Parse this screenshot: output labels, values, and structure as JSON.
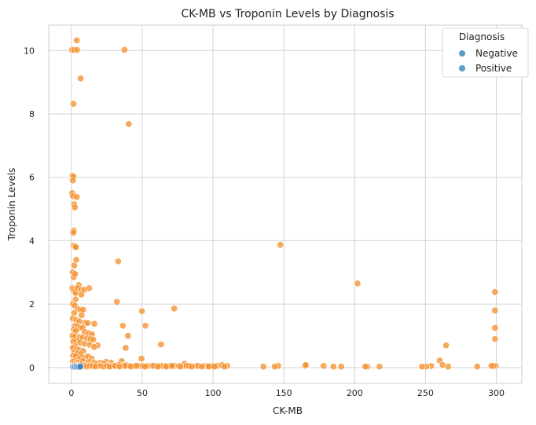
{
  "chart_data": {
    "type": "scatter",
    "title": "CK-MB vs Troponin Levels by Diagnosis",
    "xlabel": "CK-MB",
    "ylabel": "Troponin Levels",
    "xlim": [
      -16,
      318
    ],
    "ylim": [
      -0.5,
      10.8
    ],
    "xticks": [
      0,
      50,
      100,
      150,
      200,
      250,
      300
    ],
    "yticks": [
      0,
      2,
      4,
      6,
      8,
      10
    ],
    "grid": true,
    "legend": {
      "title": "Diagnosis",
      "placement": "top-right",
      "entries": [
        {
          "label": "Negative",
          "color": "#5b9bc9"
        },
        {
          "label": "Positive",
          "color": "#5b9bc9"
        }
      ]
    },
    "series": [
      {
        "name": "Negative",
        "color": "#3a7fc0",
        "points": [
          [
            1.2,
            0.02
          ],
          [
            2.0,
            0.03
          ],
          [
            2.8,
            0.02
          ],
          [
            3.6,
            0.03
          ],
          [
            4.5,
            0.02
          ],
          [
            5.5,
            0.02
          ],
          [
            6.3,
            0.03
          ]
        ]
      },
      {
        "name": "Positive",
        "color": "#f5922f",
        "points": [
          [
            0.5,
            10.02
          ],
          [
            1.8,
            10.02
          ],
          [
            4.0,
            10.02
          ],
          [
            3.8,
            10.32
          ],
          [
            37.5,
            10.02
          ],
          [
            6.5,
            9.12
          ],
          [
            1.5,
            8.32
          ],
          [
            40.5,
            7.68
          ],
          [
            0.8,
            6.05
          ],
          [
            1.4,
            6.02
          ],
          [
            1.0,
            5.9
          ],
          [
            0.6,
            5.5
          ],
          [
            1.2,
            5.4
          ],
          [
            3.8,
            5.38
          ],
          [
            2.0,
            5.15
          ],
          [
            2.4,
            5.05
          ],
          [
            1.7,
            4.32
          ],
          [
            1.4,
            4.25
          ],
          [
            1.6,
            3.85
          ],
          [
            2.4,
            3.82
          ],
          [
            3.2,
            3.8
          ],
          [
            3.4,
            3.4
          ],
          [
            2.0,
            3.22
          ],
          [
            0.9,
            3.0
          ],
          [
            1.6,
            2.85
          ],
          [
            2.6,
            2.95
          ],
          [
            0.6,
            2.5
          ],
          [
            1.4,
            2.45
          ],
          [
            2.2,
            2.4
          ],
          [
            3.1,
            2.35
          ],
          [
            5.2,
            2.6
          ],
          [
            4.4,
            2.5
          ],
          [
            6.9,
            2.45
          ],
          [
            9.1,
            2.45
          ],
          [
            12.6,
            2.5
          ],
          [
            7.0,
            2.3
          ],
          [
            3.0,
            2.15
          ],
          [
            1.1,
            2.0
          ],
          [
            2.5,
            1.95
          ],
          [
            4.6,
            1.85
          ],
          [
            6.4,
            1.82
          ],
          [
            8.3,
            1.82
          ],
          [
            2.0,
            1.72
          ],
          [
            7.2,
            1.65
          ],
          [
            1.0,
            1.55
          ],
          [
            3.4,
            1.5
          ],
          [
            5.6,
            1.45
          ],
          [
            9.7,
            1.42
          ],
          [
            11.5,
            1.4
          ],
          [
            16.2,
            1.38
          ],
          [
            2.5,
            1.32
          ],
          [
            4.2,
            1.3
          ],
          [
            6.3,
            1.25
          ],
          [
            8.1,
            1.25
          ],
          [
            1.8,
            1.2
          ],
          [
            3.2,
            1.15
          ],
          [
            9.4,
            1.12
          ],
          [
            12.1,
            1.08
          ],
          [
            14.5,
            1.05
          ],
          [
            0.8,
            1.0
          ],
          [
            2.7,
            0.98
          ],
          [
            5.8,
            0.96
          ],
          [
            7.9,
            0.95
          ],
          [
            11.0,
            0.92
          ],
          [
            13.4,
            0.9
          ],
          [
            15.4,
            0.88
          ],
          [
            4.2,
            0.85
          ],
          [
            1.4,
            0.82
          ],
          [
            6.3,
            0.78
          ],
          [
            9.3,
            0.75
          ],
          [
            12.8,
            0.72
          ],
          [
            2.6,
            0.68
          ],
          [
            0.9,
            0.62
          ],
          [
            3.7,
            0.58
          ],
          [
            5.6,
            0.55
          ],
          [
            8.3,
            0.52
          ],
          [
            18.5,
            0.7
          ],
          [
            16.0,
            0.65
          ],
          [
            2.1,
            0.48
          ],
          [
            4.3,
            0.45
          ],
          [
            6.6,
            0.42
          ],
          [
            1.3,
            0.38
          ],
          [
            3.2,
            0.35
          ],
          [
            7.2,
            0.32
          ],
          [
            9.7,
            0.3
          ],
          [
            11.8,
            0.35
          ],
          [
            14.3,
            0.28
          ],
          [
            5.2,
            0.25
          ],
          [
            2.2,
            0.22
          ],
          [
            0.9,
            0.18
          ],
          [
            8.1,
            0.2
          ],
          [
            12.3,
            0.18
          ],
          [
            15.9,
            0.15
          ],
          [
            4.4,
            0.15
          ],
          [
            1.7,
            0.12
          ],
          [
            6.8,
            0.1
          ],
          [
            3.0,
            0.08
          ],
          [
            10.0,
            0.08
          ],
          [
            17.8,
            0.12
          ],
          [
            20.6,
            0.15
          ],
          [
            24.5,
            0.18
          ],
          [
            28.0,
            0.15
          ],
          [
            35.5,
            0.2
          ],
          [
            22.6,
            0.12
          ],
          [
            19.8,
            0.05
          ],
          [
            26.6,
            0.05
          ],
          [
            29.8,
            0.05
          ],
          [
            33.4,
            0.08
          ],
          [
            36.6,
            0.05
          ],
          [
            38.8,
            0.08
          ],
          [
            41.0,
            0.05
          ],
          [
            44.8,
            0.05
          ],
          [
            48.4,
            0.05
          ],
          [
            50.4,
            0.05
          ],
          [
            53.6,
            0.05
          ],
          [
            56.8,
            0.05
          ],
          [
            59.8,
            0.05
          ],
          [
            62.0,
            0.05
          ],
          [
            64.4,
            0.05
          ],
          [
            66.8,
            0.05
          ],
          [
            69.8,
            0.05
          ],
          [
            72.6,
            0.05
          ],
          [
            75.8,
            0.05
          ],
          [
            78.6,
            0.05
          ],
          [
            80.0,
            0.12
          ],
          [
            81.0,
            0.05
          ],
          [
            83.0,
            0.05
          ],
          [
            88.0,
            0.05
          ],
          [
            89.6,
            0.05
          ],
          [
            94.2,
            0.05
          ],
          [
            96.6,
            0.05
          ],
          [
            99.8,
            0.05
          ],
          [
            103.0,
            0.05
          ],
          [
            106.4,
            0.08
          ],
          [
            110.0,
            0.05
          ],
          [
            1.0,
            0.05
          ],
          [
            2.0,
            0.08
          ],
          [
            3.0,
            0.03
          ],
          [
            5.0,
            0.05
          ],
          [
            7.0,
            0.03
          ],
          [
            9.0,
            0.05
          ],
          [
            11.0,
            0.03
          ],
          [
            13.0,
            0.05
          ],
          [
            15.0,
            0.05
          ],
          [
            17.0,
            0.03
          ],
          [
            21.0,
            0.05
          ],
          [
            23.0,
            0.03
          ],
          [
            25.0,
            0.05
          ],
          [
            27.0,
            0.03
          ],
          [
            31.0,
            0.05
          ],
          [
            34.0,
            0.03
          ],
          [
            38.0,
            0.05
          ],
          [
            42.0,
            0.03
          ],
          [
            46.0,
            0.05
          ],
          [
            52.0,
            0.03
          ],
          [
            58.0,
            0.05
          ],
          [
            61.0,
            0.03
          ],
          [
            67.0,
            0.03
          ],
          [
            71.0,
            0.05
          ],
          [
            77.0,
            0.03
          ],
          [
            85.0,
            0.03
          ],
          [
            92.0,
            0.03
          ],
          [
            97.0,
            0.03
          ],
          [
            101.0,
            0.03
          ],
          [
            108.0,
            0.03
          ],
          [
            32.1,
            2.07
          ],
          [
            33.0,
            3.35
          ],
          [
            36.3,
            1.32
          ],
          [
            38.3,
            0.62
          ],
          [
            40.0,
            1.0
          ],
          [
            49.8,
            1.78
          ],
          [
            52.2,
            1.32
          ],
          [
            63.3,
            0.73
          ],
          [
            72.6,
            1.86
          ],
          [
            49.5,
            0.28
          ],
          [
            147.5,
            3.87
          ],
          [
            202.0,
            2.65
          ],
          [
            264.5,
            0.7
          ],
          [
            260.0,
            0.22
          ],
          [
            299.0,
            2.38
          ],
          [
            299.0,
            1.8
          ],
          [
            299.0,
            1.25
          ],
          [
            299.0,
            0.9
          ],
          [
            299.5,
            0.05
          ],
          [
            298.0,
            0.05
          ],
          [
            296.5,
            0.05
          ],
          [
            286.5,
            0.03
          ],
          [
            266.0,
            0.03
          ],
          [
            262.0,
            0.08
          ],
          [
            254.0,
            0.05
          ],
          [
            250.5,
            0.03
          ],
          [
            247.5,
            0.03
          ],
          [
            217.5,
            0.03
          ],
          [
            209.0,
            0.03
          ],
          [
            207.5,
            0.03
          ],
          [
            190.5,
            0.03
          ],
          [
            185.0,
            0.03
          ],
          [
            178.0,
            0.05
          ],
          [
            165.0,
            0.05
          ],
          [
            165.5,
            0.08
          ],
          [
            146.0,
            0.05
          ],
          [
            143.5,
            0.03
          ],
          [
            135.5,
            0.03
          ]
        ]
      }
    ]
  }
}
